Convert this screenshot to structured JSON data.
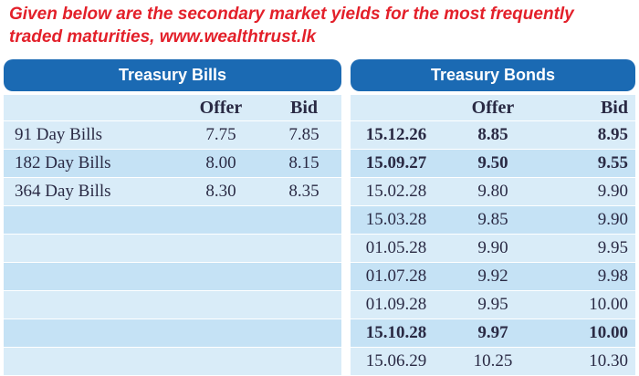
{
  "headline": {
    "line1": "Given below are the secondary market yields for the most frequently",
    "line2": "traded maturities, www.wealthtrust.lk"
  },
  "bills": {
    "title": "Treasury Bills",
    "offer_label": "Offer",
    "bid_label": "Bid",
    "rows": [
      {
        "name": "91 Day Bills",
        "offer": "7.75",
        "bid": "7.85"
      },
      {
        "name": "182 Day Bills",
        "offer": "8.00",
        "bid": "8.15"
      },
      {
        "name": "364 Day Bills",
        "offer": "8.30",
        "bid": "8.35"
      }
    ]
  },
  "bonds": {
    "title": "Treasury Bonds",
    "offer_label": "Offer",
    "bid_label": "Bid",
    "rows": [
      {
        "date": "15.12.26",
        "offer": "8.85",
        "bid": "8.95",
        "bold": true
      },
      {
        "date": "15.09.27",
        "offer": "9.50",
        "bid": "9.55",
        "bold": true
      },
      {
        "date": "15.02.28",
        "offer": "9.80",
        "bid": "9.90",
        "bold": false
      },
      {
        "date": "15.03.28",
        "offer": "9.85",
        "bid": "9.90",
        "bold": false
      },
      {
        "date": "01.05.28",
        "offer": "9.90",
        "bid": "9.95",
        "bold": false
      },
      {
        "date": "01.07.28",
        "offer": "9.92",
        "bid": "9.98",
        "bold": false
      },
      {
        "date": "01.09.28",
        "offer": "9.95",
        "bid": "10.00",
        "bold": false
      },
      {
        "date": "15.10.28",
        "offer": "9.97",
        "bid": "10.00",
        "bold": true
      },
      {
        "date": "15.06.29",
        "offer": "10.25",
        "bid": "10.30",
        "bold": false
      }
    ]
  },
  "colors": {
    "headline": "#e3202a",
    "header_bg": "#1b6ab3",
    "row_light": "#d9ecf8",
    "row_alt": "#c5e2f5"
  }
}
